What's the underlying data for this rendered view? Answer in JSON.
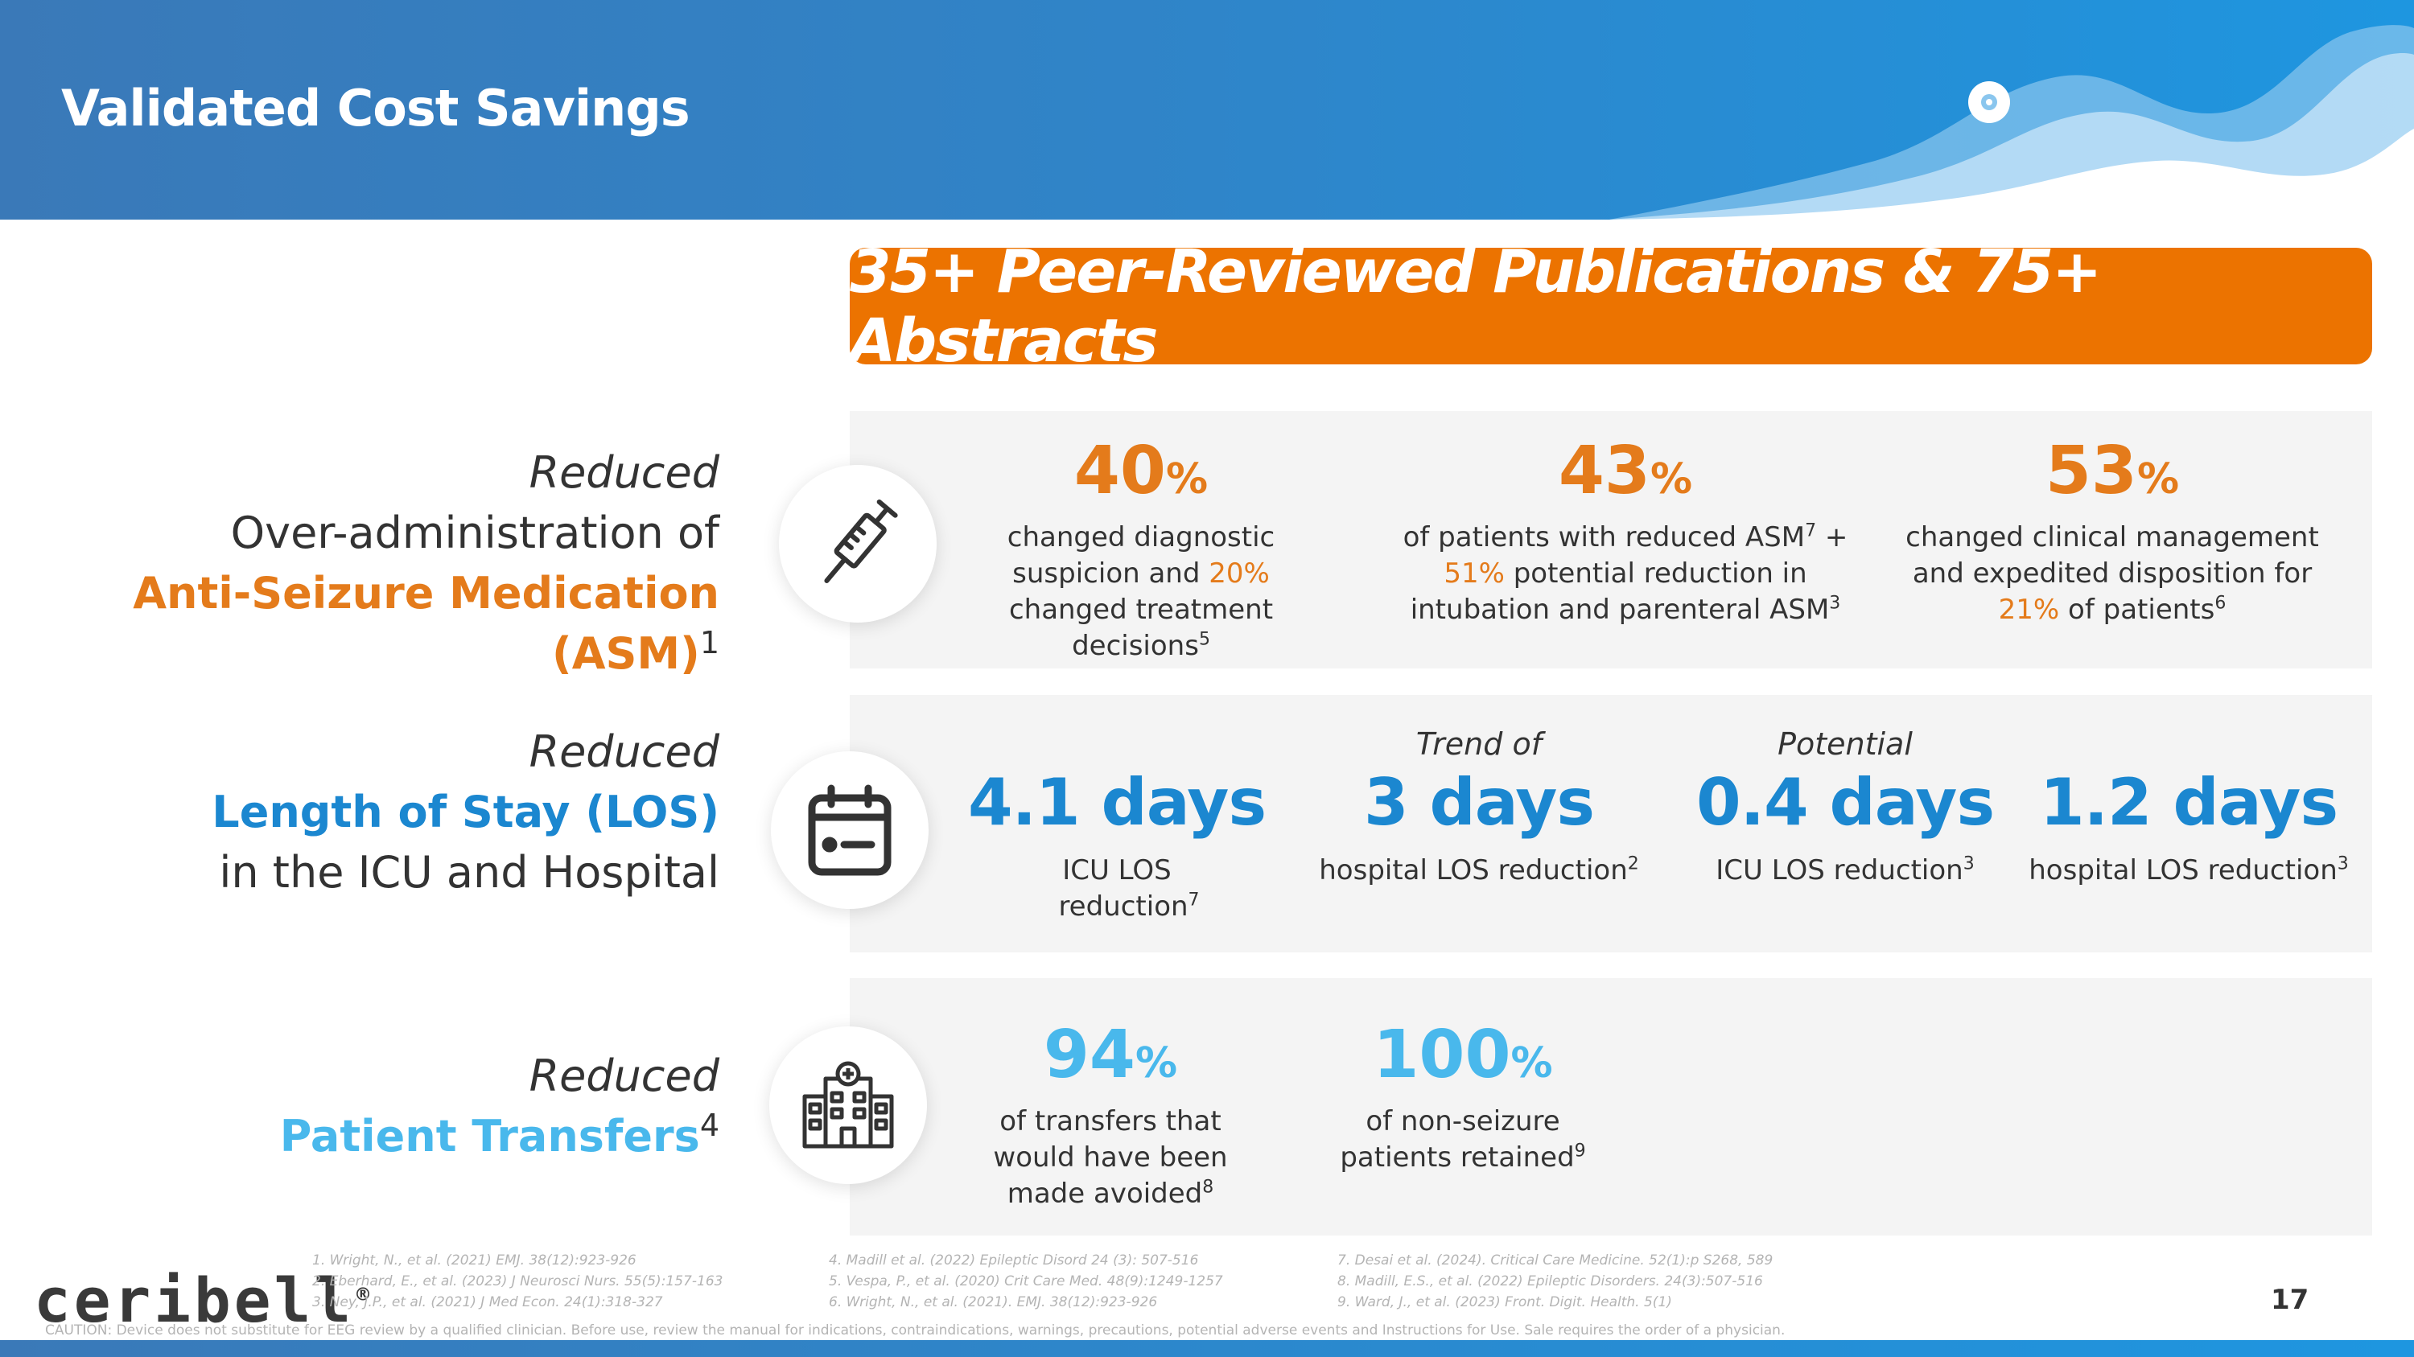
{
  "title": "Validated Cost Savings",
  "banner": "35+ Peer-Reviewed Publications & 75+ Abstracts",
  "colors": {
    "orange": "#e47b1b",
    "banner_orange": "#ec7300",
    "blue": "#1b87d0",
    "light_blue": "#49b8ec",
    "header_blue": "#2f85c9"
  },
  "rows": [
    {
      "label_italic": "Reduced",
      "label_plain": "Over-administration of",
      "label_highlight": "Anti-Seizure Medication (ASM)",
      "label_sup": "1",
      "icon": "syringe-icon",
      "stats": [
        {
          "value": "40",
          "unit": "%",
          "desc_1": "changed diagnostic",
          "desc_2a": "suspicion and ",
          "desc_2b": "20%",
          "desc_3": "changed treatment",
          "desc_4": "decisions",
          "sup": "5"
        },
        {
          "value": "43",
          "unit": "%",
          "desc_1": "of patients with reduced ASM",
          "desc_1_sup": "7",
          "desc_1_tail": " +",
          "desc_2a": "51%",
          "desc_2b": " potential reduction in",
          "desc_3": "intubation and parenteral ASM",
          "sup": "3"
        },
        {
          "value": "53",
          "unit": "%",
          "desc_1": "changed clinical management",
          "desc_2": "and expedited disposition for",
          "desc_3a": "21%",
          "desc_3b": " of patients",
          "sup": "6"
        }
      ]
    },
    {
      "label_italic": "Reduced",
      "label_highlight": "Length of Stay (LOS)",
      "label_plain": "in the ICU and Hospital",
      "icon": "calendar-icon",
      "stats": [
        {
          "pre": "",
          "value": "4.1 days",
          "desc_1": "ICU LOS",
          "desc_2": "reduction",
          "sup": "7"
        },
        {
          "pre": "Trend of",
          "value": "3 days",
          "desc_1": "hospital LOS reduction",
          "sup": "2"
        },
        {
          "pre": "Potential",
          "value": "0.4 days",
          "desc_1": "ICU LOS reduction",
          "sup": "3"
        },
        {
          "pre": "",
          "value": "1.2 days",
          "desc_1": "hospital LOS reduction",
          "sup": "3"
        }
      ]
    },
    {
      "label_italic": "Reduced",
      "label_highlight": "Patient Transfers",
      "label_sup": "4",
      "icon": "hospital-icon",
      "stats": [
        {
          "value": "94",
          "unit": "%",
          "desc_1": "of transfers that",
          "desc_2": "would have been",
          "desc_3": "made avoided",
          "sup": "8"
        },
        {
          "value": "100",
          "unit": "%",
          "desc_1": "of non-seizure",
          "desc_2": "patients retained",
          "sup": "9"
        }
      ]
    }
  ],
  "references": {
    "col1": [
      "1. Wright, N., et al. (2021) EMJ. 38(12):923-926",
      "2. Eberhard, E., et al. (2023) J Neurosci Nurs. 55(5):157-163",
      "3. Ney, J.P., et al. (2021) J Med Econ. 24(1):318-327"
    ],
    "col2": [
      "4. Madill et al. (2022) Epileptic Disord 24 (3): 507-516",
      "5. Vespa, P., et al. (2020) Crit Care Med. 48(9):1249-1257",
      "6. Wright, N., et al. (2021). EMJ. 38(12):923-926"
    ],
    "col3": [
      "7. Desai et al. (2024). Critical Care Medicine. 52(1):p S268, 589",
      "8. Madill, E.S., et al. (2022) Epileptic Disorders. 24(3):507-516",
      "9. Ward, J., et al. (2023) Front. Digit. Health. 5(1)"
    ]
  },
  "logo": "ceribell",
  "logo_mark": "®",
  "caution": "CAUTION: Device does not substitute for EEG review by a qualified clinician. Before use, review the manual for indications, contraindications, warnings, precautions, potential adverse events and Instructions for Use. Sale requires the order of a physician.",
  "page_number": "17"
}
